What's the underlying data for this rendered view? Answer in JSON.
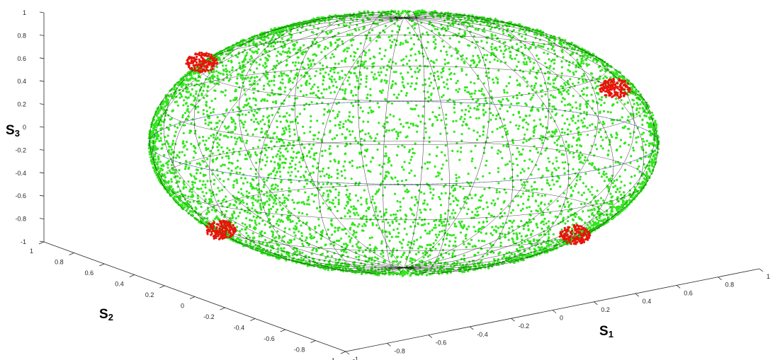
{
  "chart_data": {
    "type": "scatter",
    "kind": "3d-poincare-sphere",
    "title": "",
    "axes": {
      "s1": {
        "label": "S",
        "subscript": "1",
        "range": [
          -1,
          1
        ],
        "ticks": [
          "-1",
          "-0.8",
          "-0.6",
          "-0.4",
          "-0.2",
          "0",
          "0.2",
          "0.4",
          "0.6",
          "0.8",
          "1"
        ]
      },
      "s2": {
        "label": "S",
        "subscript": "2",
        "range": [
          -1,
          1
        ],
        "ticks": [
          "-1",
          "-0.8",
          "-0.6",
          "-0.4",
          "-0.2",
          "0",
          "0.2",
          "0.4",
          "0.6",
          "0.8",
          "1"
        ]
      },
      "s3": {
        "label": "S",
        "subscript": "3",
        "range": [
          -1,
          1
        ],
        "ticks": [
          "-1",
          "-0.8",
          "-0.6",
          "-0.4",
          "-0.2",
          "0",
          "0.2",
          "0.4",
          "0.6",
          "0.8",
          "1"
        ]
      }
    },
    "grid": false,
    "sphere_wireframe": true,
    "series": [
      {
        "color": "#33e61f",
        "marker": "dot",
        "distribution": "dense trajectories covering the unit sphere"
      },
      {
        "color": "#e8140a",
        "marker": "dot",
        "distribution": "four compact clusters",
        "clusters": [
          {
            "s1": -0.45,
            "s2": 0.2,
            "s3": 0.35
          },
          {
            "s1": 0.82,
            "s2": 0.3,
            "s3": 0.25
          },
          {
            "s1": -0.7,
            "s2": -0.25,
            "s3": -0.5
          },
          {
            "s1": 0.55,
            "s2": -0.55,
            "s3": -0.55
          }
        ]
      }
    ]
  }
}
